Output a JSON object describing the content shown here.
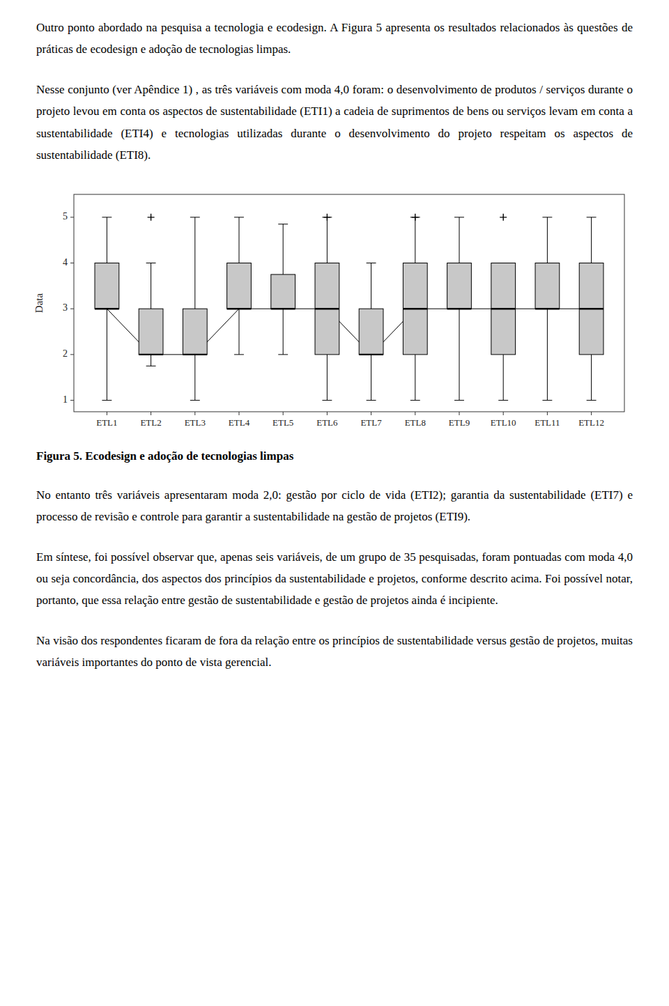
{
  "chart_data": {
    "type": "box",
    "title": "Figura 5. Ecodesign e adoção de tecnologias limpas",
    "annotations": [
      "Outro ponto abordado na pesquisa a tecnologia e ecodesign. A Figura 5 apresenta os resultados relacionados às questões de práticas de ecodesign e adoção de tecnologias limpas.",
      "Nesse conjunto (ver Apêndice 1) , as três variáveis com moda 4,0 foram: o desenvolvimento de produtos / serviços durante o projeto levou em conta os aspectos de sustentabilidade (ETI1) a cadeia de suprimentos de bens ou serviços levam em conta a sustentabilidade (ETI4) e tecnologias utilizadas durante o desenvolvimento do projeto respeitam os aspectos de sustentabilidade (ETI8).",
      "No entanto três variáveis apresentaram moda 2,0: gestão por ciclo de vida (ETI2); garantia da sustentabilidade (ETI7) e processo de revisão e controle para garantir a sustentabilidade na gestão de projetos (ETI9).",
      "Em síntese, foi possível observar que, apenas seis variáveis, de um grupo de 35 pesquisadas, foram pontuadas com moda 4,0 ou seja concordância, dos aspectos dos princípios da sustentabilidade e projetos, conforme descrito acima. Foi possível notar, portanto, que essa relação entre gestão de sustentabilidade e gestão de projetos ainda é incipiente.",
      "Na visão dos respondentes ficaram de fora da relação entre os princípios de sustentabilidade versus gestão de projetos, muitas variáveis importantes do ponto de vista gerencial."
    ],
    "ylabel": "Data",
    "categories": [
      "ETL1",
      "ETL2",
      "ETL3",
      "ETL4",
      "ETL5",
      "ETL6",
      "ETL7",
      "ETL8",
      "ETL9",
      "ETL10",
      "ETL11",
      "ETL12"
    ],
    "boxes": [
      {
        "med": 3.0,
        "q1": 3.0,
        "q3": 4.0,
        "whislo": 1.0,
        "whishi": 5.0,
        "fliers": []
      },
      {
        "med": 2.0,
        "q1": 2.0,
        "q3": 3.0,
        "whislo": 1.75,
        "whishi": 4.0,
        "fliers": [
          5.0
        ]
      },
      {
        "med": 2.0,
        "q1": 2.0,
        "q3": 3.0,
        "whislo": 1.0,
        "whishi": 5.0,
        "fliers": []
      },
      {
        "med": 3.0,
        "q1": 3.0,
        "q3": 4.0,
        "whislo": 2.0,
        "whishi": 5.0,
        "fliers": []
      },
      {
        "med": 3.0,
        "q1": 3.0,
        "q3": 3.75,
        "whislo": 2.0,
        "whishi": 4.85,
        "fliers": []
      },
      {
        "med": 3.0,
        "q1": 2.0,
        "q3": 4.0,
        "whislo": 1.0,
        "whishi": 5.0,
        "fliers": [
          5.0
        ]
      },
      {
        "med": 2.0,
        "q1": 2.0,
        "q3": 3.0,
        "whislo": 1.0,
        "whishi": 4.0,
        "fliers": []
      },
      {
        "med": 3.0,
        "q1": 2.0,
        "q3": 4.0,
        "whislo": 1.0,
        "whishi": 5.0,
        "fliers": [
          5.0
        ]
      },
      {
        "med": 3.0,
        "q1": 3.0,
        "q3": 4.0,
        "whislo": 1.0,
        "whishi": 5.0,
        "fliers": []
      },
      {
        "med": 3.0,
        "q1": 2.0,
        "q3": 4.0,
        "whislo": 1.0,
        "whishi": 4.0,
        "fliers": [
          5.0
        ]
      },
      {
        "med": 3.0,
        "q1": 3.0,
        "q3": 4.0,
        "whislo": 1.0,
        "whishi": 5.0,
        "fliers": []
      },
      {
        "med": 3.0,
        "q1": 2.0,
        "q3": 4.0,
        "whislo": 1.0,
        "whishi": 5.0,
        "fliers": []
      }
    ],
    "mean_values": [
      3.0,
      2.0,
      2.0,
      3.0,
      3.0,
      3.0,
      2.0,
      3.0,
      3.0,
      3.0,
      3.0,
      3.0
    ],
    "color": "#c8c8c8",
    "ylim": [
      0.75,
      5.5
    ],
    "yticks": [
      1,
      2,
      3,
      4,
      5
    ],
    "grid": false
  }
}
